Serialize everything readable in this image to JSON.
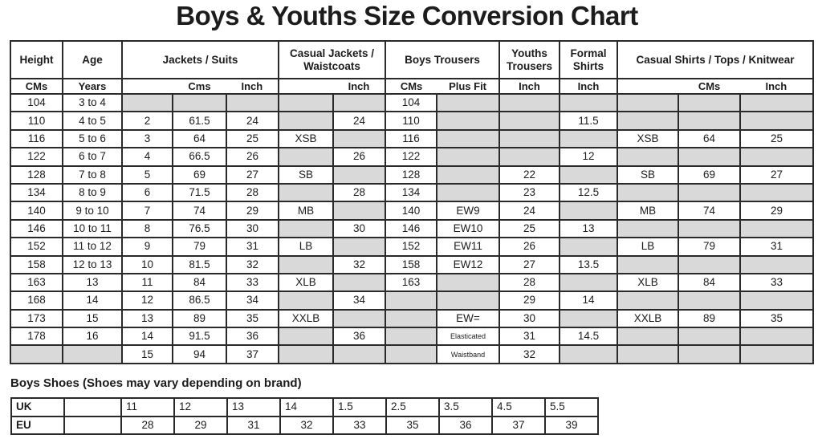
{
  "title": "Boys & Youths Size Conversion Chart",
  "colors": {
    "cell_gray": "#d9d9d9",
    "grid_border": "#2a2a2a",
    "text": "#1c1c1c"
  },
  "main_table": {
    "groups": [
      {
        "label": "Height",
        "span": 1
      },
      {
        "label": "Age",
        "span": 1
      },
      {
        "label": "Jackets / Suits",
        "span": 3
      },
      {
        "label": "Casual Jackets / Waistcoats",
        "span": 2
      },
      {
        "label": "Boys Trousers",
        "span": 2
      },
      {
        "label": "Youths Trousers",
        "span": 1
      },
      {
        "label": "Formal Shirts",
        "span": 1
      },
      {
        "label": "Casual Shirts / Tops / Knitwear",
        "span": 3
      }
    ],
    "unit_groups": [
      {
        "span": 1,
        "labels": [
          "CMs"
        ]
      },
      {
        "span": 1,
        "labels": [
          "Years"
        ]
      },
      {
        "span": 3,
        "labels": [
          "",
          "Cms",
          "Inch"
        ]
      },
      {
        "span": 2,
        "labels": [
          "",
          "Inch"
        ]
      },
      {
        "span": 2,
        "labels": [
          "CMs",
          "Plus Fit"
        ]
      },
      {
        "span": 1,
        "labels": [
          "Inch"
        ]
      },
      {
        "span": 1,
        "labels": [
          "Inch"
        ]
      },
      {
        "span": 3,
        "labels": [
          "",
          "CMs",
          "Inch"
        ]
      }
    ],
    "rows": [
      [
        "104",
        "3 to 4",
        "",
        "",
        "",
        "",
        "",
        "104",
        "",
        "",
        "",
        "",
        "",
        ""
      ],
      [
        "110",
        "4 to 5",
        "2",
        "61.5",
        "24",
        "",
        "24",
        "110",
        "",
        "",
        "11.5",
        "",
        "",
        ""
      ],
      [
        "116",
        "5 to 6",
        "3",
        "64",
        "25",
        "XSB",
        "",
        "116",
        "",
        "",
        "",
        "XSB",
        "64",
        "25"
      ],
      [
        "122",
        "6 to 7",
        "4",
        "66.5",
        "26",
        "",
        "26",
        "122",
        "",
        "",
        "12",
        "",
        "",
        ""
      ],
      [
        "128",
        "7 to 8",
        "5",
        "69",
        "27",
        "SB",
        "",
        "128",
        "",
        "22",
        "",
        "SB",
        "69",
        "27"
      ],
      [
        "134",
        "8 to 9",
        "6",
        "71.5",
        "28",
        "",
        "28",
        "134",
        "",
        "23",
        "12.5",
        "",
        "",
        ""
      ],
      [
        "140",
        "9 to 10",
        "7",
        "74",
        "29",
        "MB",
        "",
        "140",
        "EW9",
        "24",
        "",
        "MB",
        "74",
        "29"
      ],
      [
        "146",
        "10 to 11",
        "8",
        "76.5",
        "30",
        "",
        "30",
        "146",
        "EW10",
        "25",
        "13",
        "",
        "",
        ""
      ],
      [
        "152",
        "11 to 12",
        "9",
        "79",
        "31",
        "LB",
        "",
        "152",
        "EW11",
        "26",
        "",
        "LB",
        "79",
        "31"
      ],
      [
        "158",
        "12 to 13",
        "10",
        "81.5",
        "32",
        "",
        "32",
        "158",
        "EW12",
        "27",
        "13.5",
        "",
        "",
        ""
      ],
      [
        "163",
        "13",
        "11",
        "84",
        "33",
        "XLB",
        "",
        "163",
        "",
        "28",
        "",
        "XLB",
        "84",
        "33"
      ],
      [
        "168",
        "14",
        "12",
        "86.5",
        "34",
        "",
        "34",
        "",
        "",
        "29",
        "14",
        "",
        "",
        ""
      ],
      [
        "173",
        "15",
        "13",
        "89",
        "35",
        "XXLB",
        "",
        "",
        "EW=",
        "30",
        "",
        "XXLB",
        "89",
        "35"
      ],
      [
        "178",
        "16",
        "14",
        "91.5",
        "36",
        "",
        "36",
        "",
        "Elasticated",
        "31",
        "14.5",
        "",
        "",
        ""
      ],
      [
        "",
        "",
        "15",
        "94",
        "37",
        "",
        "",
        "",
        "Waistband",
        "32",
        "",
        "",
        "",
        ""
      ]
    ]
  },
  "shoes_table": {
    "heading": "Boys Shoes  (Shoes may vary depending on brand)",
    "rows": [
      {
        "label": "UK",
        "values": [
          "",
          "11",
          "12",
          "13",
          "14",
          "1.5",
          "2.5",
          "3.5",
          "4.5",
          "5.5"
        ]
      },
      {
        "label": "EU",
        "values": [
          "",
          "28",
          "29",
          "31",
          "32",
          "33",
          "35",
          "36",
          "37",
          "39"
        ]
      }
    ]
  }
}
